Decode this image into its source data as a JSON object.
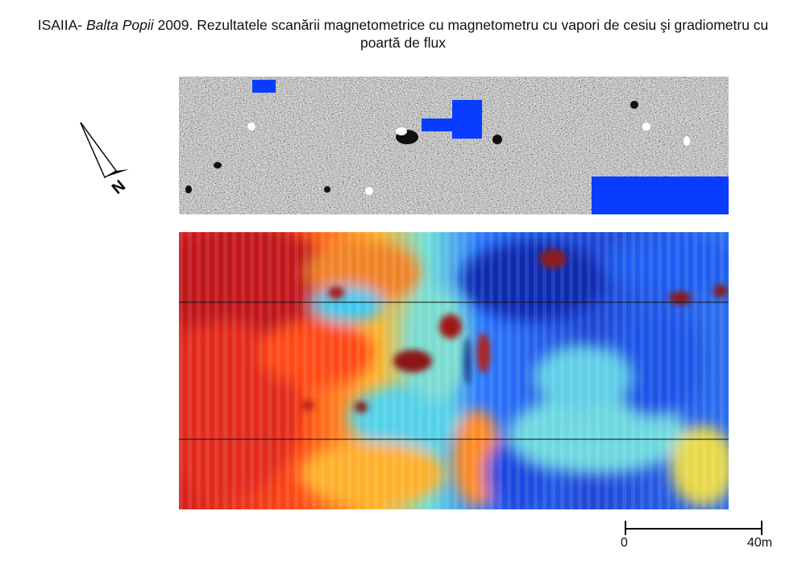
{
  "title": {
    "prefix": "ISAIIA- ",
    "site": "Balta Popii",
    "rest": "  2009. Rezultatele scanării magnetometrice cu magnetometru cu vapori de cesiu şi gradiometru cu",
    "line2": "poartă de flux"
  },
  "north_arrow": {
    "letter": "N"
  },
  "scale_bar": {
    "start_label": "0",
    "end_label": "40m"
  },
  "colors": {
    "mask_blue": "#0a3cff",
    "heat_red": "#c81414",
    "heat_orange": "#ff8a14",
    "heat_yellow": "#f5e63a",
    "heat_cyan": "#46d2e6",
    "heat_blue": "#143cd2"
  }
}
